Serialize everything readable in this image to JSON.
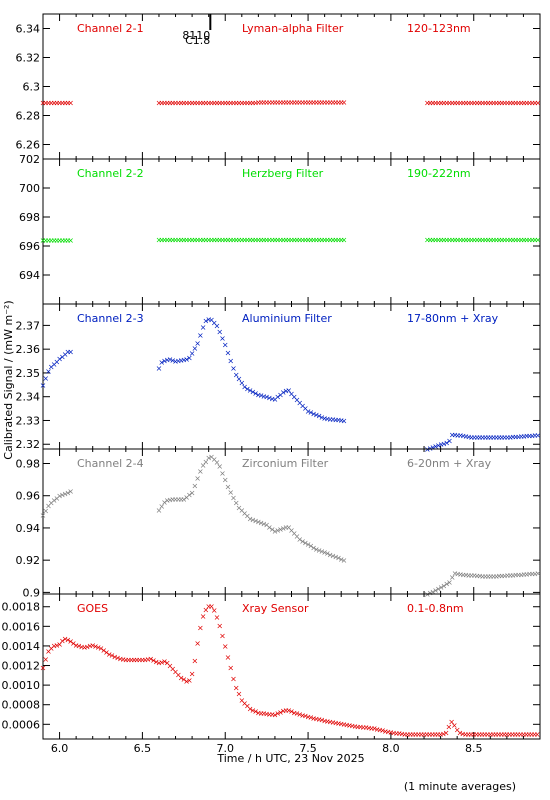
{
  "x_axis_label": "Time / h UTC, 23 Nov 2025",
  "y_axis_label": "Calibrated Signal / (mW m⁻²)",
  "footnote": "(1 minute averages)",
  "marker": {
    "label_1": "8110",
    "label_2": "C1.8",
    "x": 6.91
  },
  "chart_data": [
    {
      "type": "scatter",
      "panel": "Channel 2-1",
      "labels": [
        "Channel 2-1",
        "Lyman-alpha Filter",
        "120-123nm"
      ],
      "color": "#e00000",
      "xlim": [
        5.9,
        8.9
      ],
      "ylim": [
        6.25,
        6.35
      ],
      "yticks": [
        6.26,
        6.28,
        6.3,
        6.32,
        6.34
      ],
      "xticks": [
        6.0,
        6.5,
        7.0,
        7.5,
        8.0,
        8.5
      ],
      "segments": [
        {
          "from": 5.9,
          "to": 6.07,
          "points": [
            [
              5.9,
              6.289
            ],
            [
              6.07,
              6.289
            ]
          ]
        },
        {
          "from": 6.6,
          "to": 7.72,
          "points": [
            [
              6.6,
              6.289
            ],
            [
              7.0,
              6.289
            ],
            [
              7.4,
              6.2893
            ],
            [
              7.72,
              6.2893
            ]
          ]
        },
        {
          "from": 8.22,
          "to": 8.9,
          "points": [
            [
              8.22,
              6.289
            ],
            [
              8.9,
              6.289
            ]
          ]
        }
      ]
    },
    {
      "type": "scatter",
      "panel": "Channel 2-2",
      "labels": [
        "Channel 2-2",
        "Herzberg Filter",
        "190-222nm"
      ],
      "color": "#00dd00",
      "xlim": [
        5.9,
        8.9
      ],
      "ylim": [
        692,
        702
      ],
      "yticks": [
        694,
        696,
        698,
        700,
        702
      ],
      "xticks": [
        6.0,
        6.5,
        7.0,
        7.5,
        8.0,
        8.5
      ],
      "segments": [
        {
          "from": 5.9,
          "to": 6.07,
          "points": [
            [
              5.9,
              696.4
            ],
            [
              6.07,
              696.4
            ]
          ]
        },
        {
          "from": 6.6,
          "to": 7.72,
          "points": [
            [
              6.6,
              696.45
            ],
            [
              7.72,
              696.45
            ]
          ]
        },
        {
          "from": 8.22,
          "to": 8.9,
          "points": [
            [
              8.22,
              696.45
            ],
            [
              8.9,
              696.45
            ]
          ]
        }
      ]
    },
    {
      "type": "scatter",
      "panel": "Channel 2-3",
      "labels": [
        "Channel 2-3",
        "Aluminium Filter",
        "17-80nm + Xray"
      ],
      "color": "#0020c0",
      "xlim": [
        5.9,
        8.9
      ],
      "ylim": [
        2.318,
        2.379
      ],
      "yticks": [
        2.32,
        2.33,
        2.34,
        2.35,
        2.36,
        2.37
      ],
      "xticks": [
        6.0,
        6.5,
        7.0,
        7.5,
        8.0,
        8.5
      ],
      "segments": [
        {
          "from": 5.9,
          "to": 6.07,
          "points": [
            [
              5.9,
              2.345
            ],
            [
              5.94,
              2.352
            ],
            [
              6.0,
              2.356
            ],
            [
              6.05,
              2.359
            ],
            [
              6.07,
              2.359
            ]
          ]
        },
        {
          "from": 6.6,
          "to": 7.72,
          "points": [
            [
              6.6,
              2.352
            ],
            [
              6.62,
              2.355
            ],
            [
              6.66,
              2.356
            ],
            [
              6.7,
              2.355
            ],
            [
              6.78,
              2.356
            ],
            [
              6.83,
              2.362
            ],
            [
              6.88,
              2.372
            ],
            [
              6.91,
              2.373
            ],
            [
              6.95,
              2.37
            ],
            [
              7.0,
              2.362
            ],
            [
              7.06,
              2.35
            ],
            [
              7.12,
              2.344
            ],
            [
              7.2,
              2.341
            ],
            [
              7.3,
              2.339
            ],
            [
              7.35,
              2.342
            ],
            [
              7.38,
              2.343
            ],
            [
              7.43,
              2.339
            ],
            [
              7.5,
              2.334
            ],
            [
              7.6,
              2.331
            ],
            [
              7.72,
              2.33
            ]
          ]
        },
        {
          "from": 8.22,
          "to": 8.9,
          "points": [
            [
              8.22,
              2.318
            ],
            [
              8.3,
              2.32
            ],
            [
              8.35,
              2.321
            ],
            [
              8.37,
              2.324
            ],
            [
              8.4,
              2.324
            ],
            [
              8.5,
              2.323
            ],
            [
              8.7,
              2.323
            ],
            [
              8.9,
              2.324
            ]
          ]
        }
      ]
    },
    {
      "type": "scatter",
      "panel": "Channel 2-4",
      "labels": [
        "Channel 2-4",
        "Zirconium Filter",
        "6-20nm + Xray"
      ],
      "color": "#808080",
      "xlim": [
        5.9,
        8.9
      ],
      "ylim": [
        0.899,
        0.989
      ],
      "yticks": [
        0.9,
        0.92,
        0.94,
        0.96,
        0.98
      ],
      "xticks": [
        6.0,
        6.5,
        7.0,
        7.5,
        8.0,
        8.5
      ],
      "segments": [
        {
          "from": 5.9,
          "to": 6.07,
          "points": [
            [
              5.9,
              0.948
            ],
            [
              5.94,
              0.955
            ],
            [
              6.0,
              0.96
            ],
            [
              6.07,
              0.963
            ]
          ]
        },
        {
          "from": 6.6,
          "to": 7.72,
          "points": [
            [
              6.6,
              0.951
            ],
            [
              6.64,
              0.957
            ],
            [
              6.68,
              0.958
            ],
            [
              6.75,
              0.958
            ],
            [
              6.8,
              0.962
            ],
            [
              6.86,
              0.978
            ],
            [
              6.91,
              0.985
            ],
            [
              6.96,
              0.98
            ],
            [
              7.02,
              0.965
            ],
            [
              7.08,
              0.953
            ],
            [
              7.15,
              0.946
            ],
            [
              7.25,
              0.942
            ],
            [
              7.3,
              0.938
            ],
            [
              7.35,
              0.94
            ],
            [
              7.38,
              0.941
            ],
            [
              7.45,
              0.933
            ],
            [
              7.55,
              0.927
            ],
            [
              7.65,
              0.923
            ],
            [
              7.72,
              0.92
            ]
          ]
        },
        {
          "from": 8.22,
          "to": 8.9,
          "points": [
            [
              8.22,
              0.899
            ],
            [
              8.3,
              0.903
            ],
            [
              8.36,
              0.907
            ],
            [
              8.38,
              0.912
            ],
            [
              8.45,
              0.911
            ],
            [
              8.6,
              0.91
            ],
            [
              8.9,
              0.912
            ]
          ]
        }
      ]
    },
    {
      "type": "scatter",
      "panel": "GOES",
      "labels": [
        "GOES",
        "Xray Sensor",
        "0.1-0.8nm"
      ],
      "color": "#e00000",
      "xlim": [
        5.9,
        8.9
      ],
      "ylim": [
        0.00045,
        0.00193
      ],
      "yticks": [
        0.0006,
        0.0008,
        0.001,
        0.0012,
        0.0014,
        0.0016,
        0.0018
      ],
      "yticklabels": [
        "0.0006",
        "0.0008",
        "0.0010",
        "0.0012",
        "0.0014",
        "0.0016",
        "0.0018"
      ],
      "xticks": [
        6.0,
        6.5,
        7.0,
        7.5,
        8.0,
        8.5
      ],
      "xticklabels": [
        "6.0",
        "6.5",
        "7.0",
        "7.5",
        "8.0",
        "8.5"
      ],
      "segments": [
        {
          "from": 5.9,
          "to": 8.9,
          "points": [
            [
              5.9,
              0.00118
            ],
            [
              5.93,
              0.00134
            ],
            [
              5.96,
              0.0014
            ],
            [
              6.0,
              0.00142
            ],
            [
              6.03,
              0.00148
            ],
            [
              6.06,
              0.00146
            ],
            [
              6.1,
              0.00141
            ],
            [
              6.15,
              0.00139
            ],
            [
              6.2,
              0.00141
            ],
            [
              6.25,
              0.00138
            ],
            [
              6.3,
              0.00132
            ],
            [
              6.35,
              0.00128
            ],
            [
              6.4,
              0.00126
            ],
            [
              6.5,
              0.00126
            ],
            [
              6.55,
              0.00127
            ],
            [
              6.6,
              0.00123
            ],
            [
              6.64,
              0.00125
            ],
            [
              6.7,
              0.00114
            ],
            [
              6.73,
              0.00108
            ],
            [
              6.77,
              0.00104
            ],
            [
              6.79,
              0.00106
            ],
            [
              6.81,
              0.00118
            ],
            [
              6.83,
              0.0014
            ],
            [
              6.86,
              0.00168
            ],
            [
              6.89,
              0.0018
            ],
            [
              6.91,
              0.00182
            ],
            [
              6.93,
              0.00178
            ],
            [
              6.96,
              0.00165
            ],
            [
              7.0,
              0.0014
            ],
            [
              7.03,
              0.0012
            ],
            [
              7.06,
              0.001
            ],
            [
              7.1,
              0.00085
            ],
            [
              7.15,
              0.00076
            ],
            [
              7.2,
              0.00072
            ],
            [
              7.3,
              0.0007
            ],
            [
              7.35,
              0.00074
            ],
            [
              7.38,
              0.00075
            ],
            [
              7.42,
              0.00072
            ],
            [
              7.5,
              0.00068
            ],
            [
              7.6,
              0.00064
            ],
            [
              7.7,
              0.00061
            ],
            [
              7.8,
              0.00058
            ],
            [
              7.9,
              0.00056
            ],
            [
              8.0,
              0.00052
            ],
            [
              8.1,
              0.0005
            ],
            [
              8.2,
              0.0005
            ],
            [
              8.3,
              0.0005
            ],
            [
              8.34,
              0.00052
            ],
            [
              8.36,
              0.00064
            ],
            [
              8.38,
              0.0006
            ],
            [
              8.41,
              0.00052
            ],
            [
              8.45,
              0.0005
            ],
            [
              8.6,
              0.0005
            ],
            [
              8.9,
              0.0005
            ]
          ]
        }
      ]
    }
  ]
}
